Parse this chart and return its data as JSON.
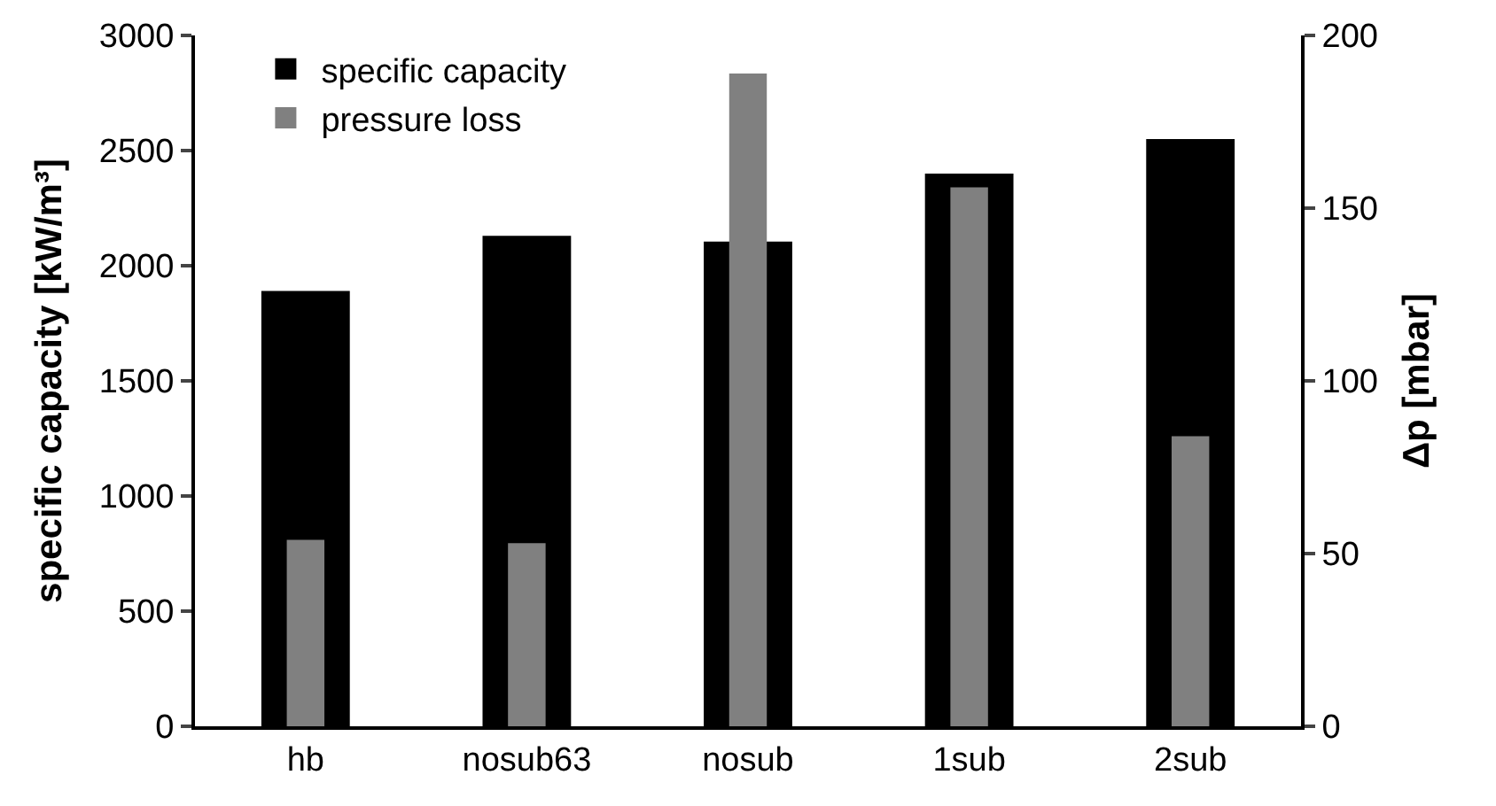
{
  "chart_data": {
    "type": "bar",
    "categories": [
      "hb",
      "nosub63",
      "nosub",
      "1sub",
      "2sub"
    ],
    "ylabel": "specific capacity [kW/m³]",
    "y2label": "Δp [mbar]",
    "series": [
      {
        "name": "specific capacity",
        "color": "#000000",
        "values": [
          1890,
          2130,
          2105,
          2400,
          2550
        ]
      },
      {
        "name": "pressure loss",
        "color": "#808080",
        "values": [
          54,
          53,
          189,
          156,
          84
        ],
        "axis": "y2"
      }
    ],
    "ylim": [
      0,
      3000
    ],
    "yticks": [
      0,
      500,
      1000,
      1500,
      2000,
      2500,
      3000
    ],
    "y2lim": [
      0,
      200
    ],
    "y2ticks": [
      0,
      50,
      100,
      150,
      200
    ],
    "legend": "top left"
  }
}
